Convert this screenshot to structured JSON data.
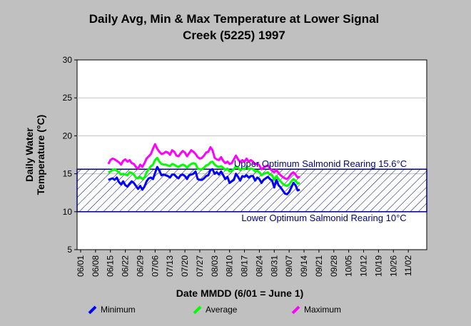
{
  "chart_data": {
    "type": "line",
    "title_lines": [
      "Daily Avg, Min & Max Temperature at Lower Signal",
      "Creek (5225) 1997"
    ],
    "xlabel": "Date MMDD (6/01 = June 1)",
    "ylabel_lines": [
      "Daily Water",
      "Temperature (°C)"
    ],
    "ylim": [
      5,
      30
    ],
    "yticks": [
      5,
      10,
      15,
      20,
      25,
      30
    ],
    "x_tick_labels": [
      "06/01",
      "06/08",
      "06/15",
      "06/22",
      "06/29",
      "07/06",
      "07/13",
      "07/20",
      "07/27",
      "08/03",
      "08/10",
      "08/17",
      "08/24",
      "08/31",
      "09/07",
      "09/14",
      "09/21",
      "09/28",
      "10/05",
      "10/12",
      "10/19",
      "10/26",
      "11/02"
    ],
    "grid": "horizontal",
    "x_start_date": "06/01",
    "shaded_band": {
      "lower": 10,
      "upper": 15.6,
      "upper_label": "Upper Optimum Salmonid Rearing 15.6°C",
      "lower_label": "Lower Optimum Salmonid Rearing 10°C",
      "color": "#000080"
    },
    "series": [
      {
        "name": "Minimum",
        "color": "#0000ff",
        "start_date": "06/14",
        "values": [
          14.2,
          14.3,
          14.4,
          14.2,
          14.5,
          13.9,
          13.6,
          14.0,
          13.5,
          13.3,
          13.7,
          14.0,
          13.8,
          13.4,
          13.0,
          13.4,
          12.9,
          13.3,
          14.0,
          14.4,
          14.5,
          14.3,
          15.1,
          15.9,
          15.4,
          14.8,
          14.9,
          14.8,
          14.7,
          14.5,
          14.9,
          14.9,
          14.6,
          14.4,
          14.8,
          14.9,
          14.7,
          14.3,
          14.8,
          14.9,
          15.0,
          15.3,
          14.3,
          14.2,
          14.2,
          14.4,
          14.7,
          14.8,
          15.5,
          15.6,
          15.0,
          15.2,
          14.9,
          15.3,
          14.8,
          14.3,
          14.6,
          13.8,
          14.0,
          14.2,
          15.0,
          14.6,
          14.1,
          14.7,
          14.6,
          14.8,
          14.5,
          14.7,
          14.7,
          14.1,
          14.5,
          14.3,
          13.8,
          14.2,
          14.4,
          14.6,
          14.3,
          14.1,
          13.2,
          14.2,
          13.5,
          13.2,
          12.8,
          12.4,
          12.3,
          12.6,
          13.2,
          13.8,
          13.5,
          12.8,
          12.9
        ]
      },
      {
        "name": "Average",
        "color": "#00ff00",
        "start_date": "06/14",
        "values": [
          15.2,
          15.3,
          15.5,
          15.6,
          15.4,
          15.2,
          14.9,
          15.0,
          14.9,
          14.8,
          15.2,
          15.1,
          14.9,
          14.5,
          14.4,
          14.6,
          14.3,
          14.5,
          15.2,
          15.6,
          16.0,
          16.2,
          16.8,
          17.1,
          16.6,
          16.3,
          16.2,
          16.2,
          16.1,
          16.0,
          16.3,
          16.2,
          16.0,
          15.9,
          16.1,
          16.2,
          16.1,
          15.8,
          16.1,
          16.3,
          16.4,
          16.3,
          15.7,
          15.6,
          15.6,
          15.8,
          16.1,
          16.2,
          16.5,
          16.6,
          16.2,
          16.0,
          15.9,
          16.0,
          15.8,
          15.5,
          15.7,
          15.3,
          15.4,
          15.6,
          16.0,
          15.8,
          15.5,
          15.7,
          15.6,
          15.9,
          15.6,
          15.7,
          15.6,
          15.3,
          15.4,
          15.2,
          14.8,
          15.0,
          15.1,
          15.2,
          14.9,
          14.8,
          14.2,
          14.7,
          14.3,
          14.0,
          13.7,
          13.5,
          13.4,
          13.6,
          14.0,
          14.3,
          14.1,
          13.7,
          13.8
        ]
      },
      {
        "name": "Maximum",
        "color": "#ff00ff",
        "start_date": "06/14",
        "values": [
          16.3,
          16.8,
          17.0,
          16.9,
          16.7,
          16.5,
          16.2,
          16.7,
          16.9,
          16.6,
          16.8,
          16.4,
          16.3,
          15.9,
          15.7,
          16.2,
          15.9,
          16.4,
          17.0,
          17.3,
          17.6,
          18.3,
          18.9,
          18.3,
          17.9,
          17.6,
          17.7,
          17.9,
          17.8,
          17.5,
          18.1,
          17.9,
          17.4,
          17.3,
          17.7,
          18.0,
          17.8,
          17.3,
          17.7,
          18.1,
          17.9,
          17.6,
          17.2,
          17.0,
          17.1,
          17.4,
          17.8,
          17.9,
          18.5,
          18.1,
          17.1,
          16.9,
          16.8,
          17.2,
          16.7,
          16.4,
          16.6,
          16.3,
          16.4,
          16.9,
          17.4,
          16.9,
          16.5,
          16.8,
          16.6,
          17.0,
          16.6,
          16.8,
          16.6,
          16.2,
          16.4,
          16.1,
          15.6,
          15.8,
          16.0,
          16.1,
          15.7,
          15.4,
          15.2,
          15.5,
          15.1,
          14.8,
          14.6,
          14.4,
          14.3,
          14.6,
          15.0,
          15.2,
          14.9,
          14.5,
          14.6
        ]
      }
    ]
  }
}
